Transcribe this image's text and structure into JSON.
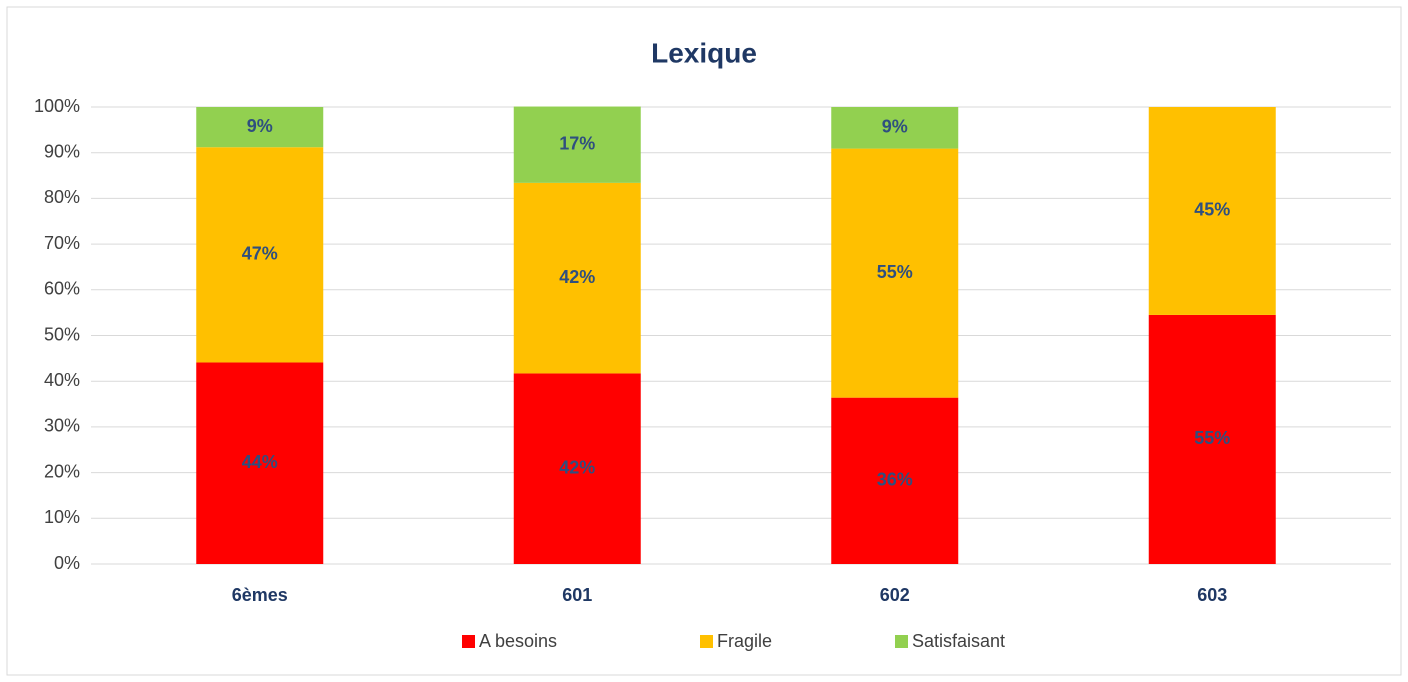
{
  "chart_data": {
    "type": "stacked_bar",
    "title": "Lexique",
    "categories": [
      "6èmes",
      "601",
      "602",
      "603"
    ],
    "series": [
      {
        "name": "A besoins",
        "color": "#ff0000",
        "values": [
          44.1,
          41.7,
          36.4,
          54.5
        ],
        "value_labels": [
          "44%",
          "42%",
          "36%",
          "55%"
        ]
      },
      {
        "name": "Fragile",
        "color": "#ffc000",
        "values": [
          47.1,
          41.7,
          54.5,
          45.5
        ],
        "value_labels": [
          "47%",
          "42%",
          "55%",
          "45%"
        ]
      },
      {
        "name": "Satisfaisant",
        "color": "#92d050",
        "values": [
          8.8,
          16.7,
          9.1,
          0
        ],
        "value_labels": [
          "9%",
          "17%",
          "9%",
          null
        ]
      }
    ],
    "ylim": [
      0,
      100
    ],
    "yticks": [
      {
        "value": 0,
        "label": "0%"
      },
      {
        "value": 10,
        "label": "10%"
      },
      {
        "value": 20,
        "label": "20%"
      },
      {
        "value": 30,
        "label": "30%"
      },
      {
        "value": 40,
        "label": "40%"
      },
      {
        "value": 50,
        "label": "50%"
      },
      {
        "value": 60,
        "label": "60%"
      },
      {
        "value": 70,
        "label": "70%"
      },
      {
        "value": 80,
        "label": "80%"
      },
      {
        "value": 90,
        "label": "90%"
      },
      {
        "value": 100,
        "label": "100%"
      }
    ],
    "grid": true,
    "legend": "bottom"
  }
}
